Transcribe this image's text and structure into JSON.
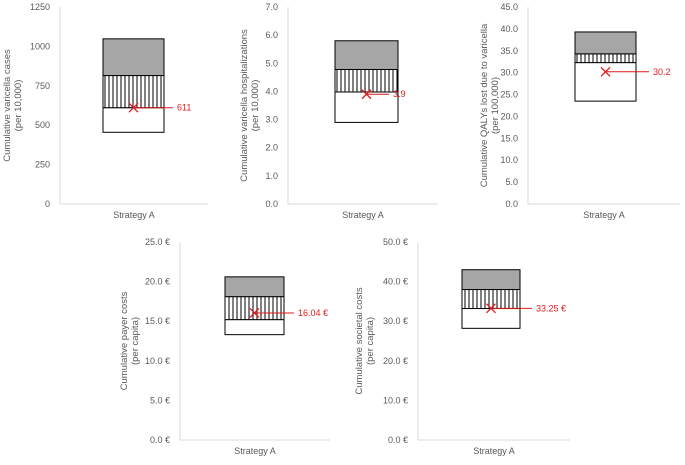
{
  "chart_data": [
    {
      "type": "bar",
      "id": "cases",
      "categories": [
        "Strategy A"
      ],
      "ylabel_lines": [
        "Cumulative varicella cases",
        "(per 10,000)"
      ],
      "ylim": [
        0,
        1250
      ],
      "ticks": [
        "0",
        "250",
        "500",
        "750",
        "1000",
        "1250"
      ],
      "tick_values": [
        0,
        250,
        500,
        750,
        1000,
        1250
      ],
      "segments": [
        {
          "from": 455,
          "to": 611,
          "fill": "white"
        },
        {
          "from": 611,
          "to": 815,
          "fill": "hatch"
        },
        {
          "from": 815,
          "to": 1048,
          "fill": "gray"
        }
      ],
      "point": {
        "value": 611,
        "label": "611"
      }
    },
    {
      "type": "bar",
      "id": "hosp",
      "categories": [
        "Strategy A"
      ],
      "ylabel_lines": [
        "Cumulative varicella hospitalizations",
        "(per 10,000)"
      ],
      "ylim": [
        0,
        7
      ],
      "ticks": [
        "0.0",
        "1.0",
        "2.0",
        "3.0",
        "4.0",
        "5.0",
        "6.0",
        "7.0"
      ],
      "tick_values": [
        0,
        1,
        2,
        3,
        4,
        5,
        6,
        7
      ],
      "segments": [
        {
          "from": 2.9,
          "to": 3.98,
          "fill": "white"
        },
        {
          "from": 3.98,
          "to": 4.78,
          "fill": "hatch"
        },
        {
          "from": 4.78,
          "to": 5.8,
          "fill": "gray"
        }
      ],
      "point": {
        "value": 3.9,
        "label": "3.9"
      }
    },
    {
      "type": "bar",
      "id": "qaly",
      "categories": [
        "Strategy A"
      ],
      "ylabel_lines": [
        "Cumulative QALYs lost due to varicella",
        "(per 100,000)"
      ],
      "ylim": [
        0,
        45
      ],
      "ticks": [
        "0.0",
        "5.0",
        "10.0",
        "15.0",
        "20.0",
        "25.0",
        "30.0",
        "35.0",
        "40.0",
        "45.0"
      ],
      "tick_values": [
        0,
        5,
        10,
        15,
        20,
        25,
        30,
        35,
        40,
        45
      ],
      "segments": [
        {
          "from": 23.5,
          "to": 32.3,
          "fill": "white"
        },
        {
          "from": 32.3,
          "to": 34.3,
          "fill": "hatch"
        },
        {
          "from": 34.3,
          "to": 39.3,
          "fill": "gray"
        }
      ],
      "point": {
        "value": 30.2,
        "label": "30.2"
      }
    },
    {
      "type": "bar",
      "id": "payer",
      "categories": [
        "Strategy A"
      ],
      "ylabel_lines": [
        "Cumulative payer costs",
        "(per capita)"
      ],
      "ylim": [
        0,
        25
      ],
      "ticks": [
        "0.0 €",
        "5.0 €",
        "10.0 €",
        "15.0 €",
        "20.0 €",
        "25.0 €"
      ],
      "tick_values": [
        0,
        5,
        10,
        15,
        20,
        25
      ],
      "segments": [
        {
          "from": 13.3,
          "to": 15.2,
          "fill": "white"
        },
        {
          "from": 15.2,
          "to": 18.1,
          "fill": "hatch"
        },
        {
          "from": 18.1,
          "to": 20.6,
          "fill": "gray"
        }
      ],
      "point": {
        "value": 16.04,
        "label": "16.04 €"
      }
    },
    {
      "type": "bar",
      "id": "societal",
      "categories": [
        "Strategy A"
      ],
      "ylabel_lines": [
        "Cumulative societal costs",
        "(per capita)"
      ],
      "ylim": [
        0,
        50
      ],
      "ticks": [
        "0.0 €",
        "10.0 €",
        "20.0 €",
        "30.0 €",
        "40.0 €",
        "50.0 €"
      ],
      "tick_values": [
        0,
        10,
        20,
        30,
        40,
        50
      ],
      "segments": [
        {
          "from": 28.2,
          "to": 33.2,
          "fill": "white"
        },
        {
          "from": 33.2,
          "to": 38.0,
          "fill": "hatch"
        },
        {
          "from": 38.0,
          "to": 43.0,
          "fill": "gray"
        }
      ],
      "point": {
        "value": 33.25,
        "label": "33.25 €"
      }
    }
  ],
  "colors": {
    "axis": "#d9d9d9",
    "text": "#595959",
    "bar_border": "#000000",
    "gray_fill": "#a6a6a6",
    "hatch_line": "#000000",
    "marker": "#e31a1c"
  }
}
